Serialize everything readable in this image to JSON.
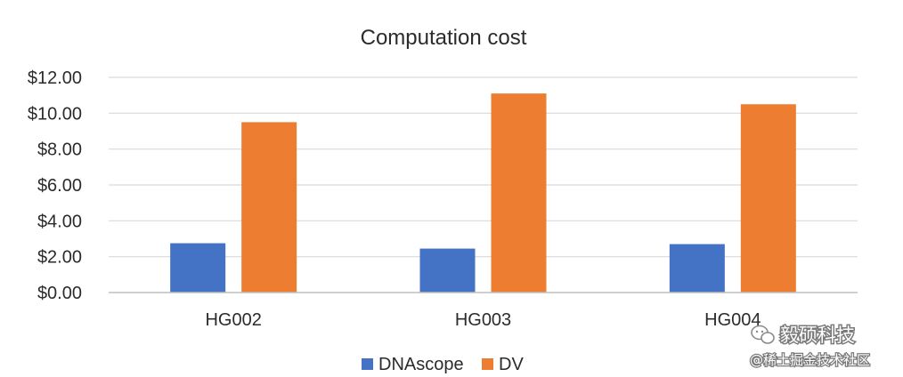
{
  "chart_data": {
    "type": "bar",
    "title": "Computation cost",
    "xlabel": "",
    "ylabel": "",
    "categories": [
      "HG002",
      "HG003",
      "HG004"
    ],
    "series": [
      {
        "name": "DNAscope",
        "values": [
          2.75,
          2.45,
          2.7
        ],
        "color": "#4472c4"
      },
      {
        "name": "DV",
        "values": [
          9.5,
          11.1,
          10.5
        ],
        "color": "#ed7d31"
      }
    ],
    "ylim": [
      0,
      12
    ],
    "yticks": [
      "$0.00",
      "$2.00",
      "$4.00",
      "$6.00",
      "$8.00",
      "$10.00",
      "$12.00"
    ],
    "grid": true,
    "legend_position": "bottom"
  },
  "watermark": {
    "brand": "毅硕科技",
    "source": "@稀土掘金技术社区",
    "icon": "wechat-icon"
  }
}
